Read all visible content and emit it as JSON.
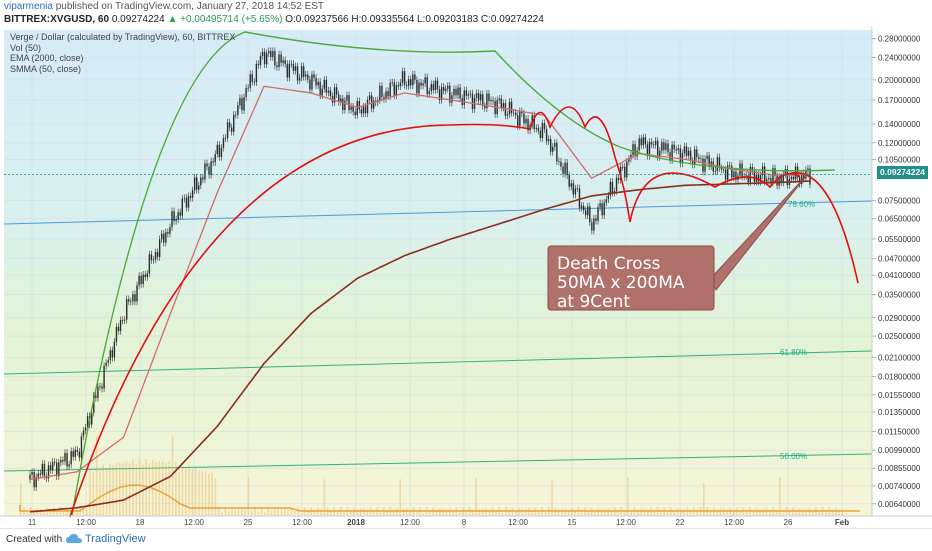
{
  "header": {
    "username": "viparmenia",
    "published_text": "published on TradingView.com, January 27, 2018 14:52 EST",
    "symbol": "BITTREX:XVGUSD, 60",
    "last_price": "0.09274224",
    "change": "▲ +0.00495714 (+5.65%)",
    "ohlc": "O:0.09237566 H:0.09335564 L:0.09203183 C:0.09274224"
  },
  "legend": {
    "title": "Verge / Dollar (calculated by TradingView), 60, BITTREX",
    "items": [
      "Vol (50)",
      "EMA (2000, close)",
      "SMMA (50, close)"
    ]
  },
  "footer": {
    "created_with": "Created with",
    "brand": "TradingView"
  },
  "annotation": {
    "lines": [
      "Death Cross",
      "50MA x 200MA",
      "at 9Cent"
    ]
  },
  "current_price_label": "0.09274224",
  "colors": {
    "candles": "#2b2b2b",
    "smma": "#d46a6a",
    "ema": "#8b2d1a",
    "curve": "#e01010",
    "envelope": "#4caa3a",
    "volume": "#e8a23a",
    "fib": "#1aaf8a",
    "annotation_bg": "#b0716a"
  },
  "chart_data": {
    "type": "line",
    "x_labels": [
      "11",
      "12:00",
      "18",
      "12:00",
      "25",
      "12:00",
      "2018",
      "12:00",
      "8",
      "12:00",
      "15",
      "12:00",
      "22",
      "12:00",
      "26",
      "Feb"
    ],
    "y_labels": [
      "0.28000000",
      "0.24000000",
      "0.20000000",
      "0.17000000",
      "0.14000000",
      "0.12000000",
      "0.10500000",
      "0.09274224",
      "0.07500000",
      "0.06500000",
      "0.05500000",
      "0.04700000",
      "0.04100000",
      "0.03500000",
      "0.02900000",
      "0.02500000",
      "0.02100000",
      "0.01800000",
      "0.01550000",
      "0.01350000",
      "0.01150000",
      "0.00990000",
      "0.00855000",
      "0.00740000",
      "0.00640000"
    ],
    "y_scale": "log",
    "ylim": [
      0.0058,
      0.3
    ],
    "fib_levels": [
      {
        "label": "78.60%",
        "value": 0.0725
      },
      {
        "label": "61.80%",
        "value": 0.0215
      },
      {
        "label": "50.00%",
        "value": 0.0097
      }
    ],
    "series": [
      {
        "name": "Verge / Dollar",
        "x": [
          0,
          6,
          12,
          18,
          24,
          30,
          36,
          42,
          48,
          54,
          60,
          66,
          72,
          78,
          84,
          90,
          96,
          100
        ],
        "y": [
          0.0078,
          0.0096,
          0.03,
          0.062,
          0.11,
          0.25,
          0.2,
          0.155,
          0.2,
          0.18,
          0.165,
          0.13,
          0.062,
          0.12,
          0.11,
          0.094,
          0.09,
          0.0927
        ]
      },
      {
        "name": "SMMA (50, close)",
        "x": [
          0,
          6,
          12,
          18,
          24,
          30,
          36,
          42,
          48,
          54,
          60,
          66,
          72,
          78,
          84,
          90,
          96,
          100
        ],
        "y": [
          0.0078,
          0.0083,
          0.011,
          0.03,
          0.08,
          0.19,
          0.18,
          0.16,
          0.18,
          0.17,
          0.16,
          0.15,
          0.09,
          0.11,
          0.105,
          0.097,
          0.092,
          0.093
        ]
      },
      {
        "name": "EMA (2000, close)",
        "x": [
          0,
          6,
          12,
          18,
          24,
          30,
          36,
          42,
          48,
          54,
          60,
          66,
          72,
          78,
          84,
          90,
          96,
          100
        ],
        "y": [
          0.006,
          0.0062,
          0.0066,
          0.008,
          0.012,
          0.02,
          0.03,
          0.04,
          0.048,
          0.055,
          0.062,
          0.07,
          0.078,
          0.082,
          0.085,
          0.086,
          0.087,
          0.088
        ]
      }
    ]
  }
}
